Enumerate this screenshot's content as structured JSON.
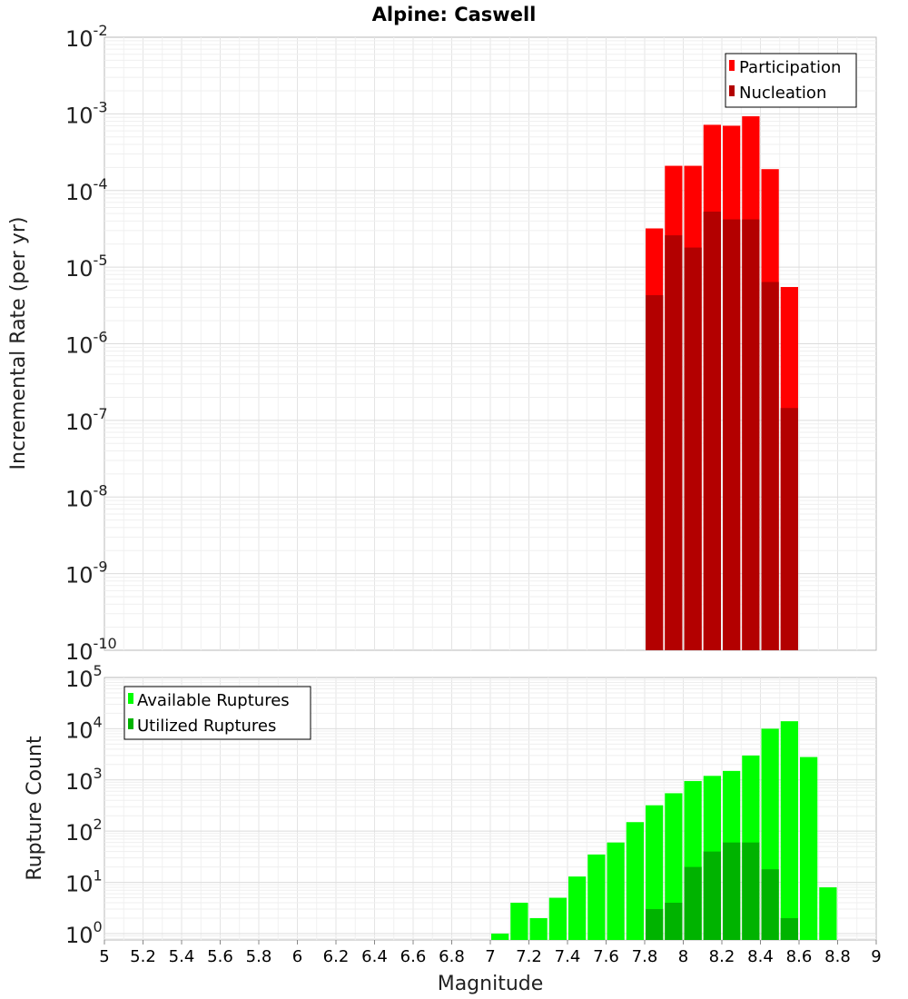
{
  "chart_data": [
    {
      "type": "bar",
      "title": "Alpine: Caswell",
      "xlabel": "",
      "ylabel": "Incremental Rate (per yr)",
      "yscale": "log",
      "ylim": [
        1e-10,
        0.01
      ],
      "xlim": [
        5,
        9
      ],
      "bar_width": 0.1,
      "grid": true,
      "legend_position": "top-right",
      "y_tick_exponents": [
        -2,
        -3,
        -4,
        -5,
        -6,
        -7,
        -8,
        -9,
        -10
      ],
      "series": [
        {
          "name": "Participation",
          "color": "#ff0000",
          "x": [
            7.85,
            7.95,
            8.05,
            8.15,
            8.25,
            8.35,
            8.45,
            8.55
          ],
          "values": [
            3.2e-05,
            0.00021,
            0.00021,
            0.00072,
            0.0007,
            0.00093,
            0.00019,
            5.5e-06
          ]
        },
        {
          "name": "Nucleation",
          "color": "#b30000",
          "x": [
            7.85,
            7.95,
            8.05,
            8.15,
            8.25,
            8.35,
            8.45,
            8.55
          ],
          "values": [
            4.3e-06,
            2.6e-05,
            1.8e-05,
            5.3e-05,
            4.2e-05,
            4.2e-05,
            6.4e-06,
            1.45e-07
          ]
        }
      ]
    },
    {
      "type": "bar",
      "title": "",
      "xlabel": "Magnitude",
      "ylabel": "Rupture Count",
      "yscale": "log",
      "ylim": [
        0.75,
        100000.0
      ],
      "xlim": [
        5,
        9
      ],
      "bar_width": 0.1,
      "grid": true,
      "legend_position": "top-left",
      "y_tick_exponents": [
        5,
        4,
        3,
        2,
        1,
        0
      ],
      "x_ticks": [
        "5",
        "5.2",
        "5.4",
        "5.6",
        "5.8",
        "6",
        "6.2",
        "6.4",
        "6.6",
        "6.8",
        "7",
        "7.2",
        "7.4",
        "7.6",
        "7.8",
        "8",
        "8.2",
        "8.4",
        "8.6",
        "8.8",
        "9"
      ],
      "series": [
        {
          "name": "Available Ruptures",
          "color": "#00ff00",
          "x": [
            7.05,
            7.15,
            7.25,
            7.35,
            7.45,
            7.55,
            7.65,
            7.75,
            7.85,
            7.95,
            8.05,
            8.15,
            8.25,
            8.35,
            8.45,
            8.55,
            8.65,
            8.75
          ],
          "values": [
            1,
            4,
            2,
            5,
            13,
            35,
            60,
            150,
            320,
            550,
            950,
            1200,
            1500,
            3000,
            10000,
            14000,
            2800,
            8
          ]
        },
        {
          "name": "Utilized Ruptures",
          "color": "#00b300",
          "x": [
            7.85,
            7.95,
            8.05,
            8.15,
            8.25,
            8.35,
            8.45,
            8.55
          ],
          "values": [
            3,
            4,
            20,
            40,
            60,
            60,
            18,
            2
          ]
        }
      ]
    }
  ]
}
